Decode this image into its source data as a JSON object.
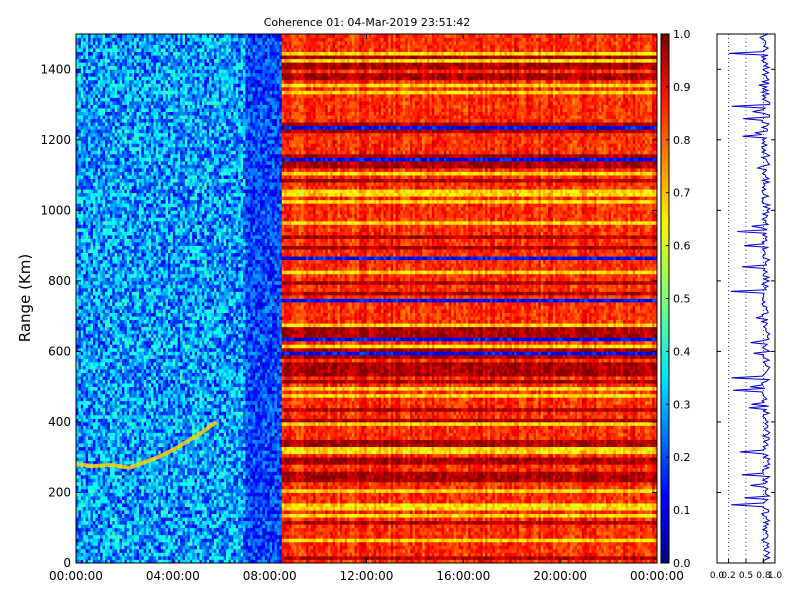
{
  "chart_data": [
    {
      "type": "heatmap",
      "title": "Coherence 01: 04-Mar-2019 23:51:42",
      "xlabel": "",
      "ylabel": "Range (Km)",
      "xlim": [
        "00:00:00",
        "00:00:00 (+24h)"
      ],
      "ylim": [
        0,
        1500
      ],
      "x_ticks": [
        "00:00:00",
        "04:00:00",
        "08:00:00",
        "12:00:00",
        "16:00:00",
        "20:00:00",
        "00:00:00"
      ],
      "y_ticks": [
        "0",
        "200",
        "400",
        "600",
        "800",
        "1000",
        "1200",
        "1400"
      ],
      "colormap": "jet",
      "value_range": [
        0.0,
        1.0
      ],
      "regions": [
        {
          "from": "00:00:00",
          "to": "07:00:00",
          "typical_value": 0.3,
          "description_values": [
            0.2,
            0.45
          ]
        },
        {
          "from": "07:00:00",
          "to": "08:30:00",
          "typical_value": 0.1,
          "description_values": [
            0.05,
            0.25
          ]
        },
        {
          "from": "08:30:00",
          "to": "24:00:00",
          "typical_value": 0.85,
          "description_values": [
            0.6,
            1.0
          ]
        }
      ],
      "feature_curve": {
        "x_hours": [
          0.0,
          0.7,
          1.5,
          2.2,
          2.8,
          3.4,
          4.0,
          4.6,
          5.2,
          5.8
        ],
        "y_km": [
          280,
          275,
          278,
          270,
          285,
          300,
          320,
          345,
          370,
          400
        ]
      },
      "grid": false
    },
    {
      "type": "colorbar",
      "ticks": [
        "0.0",
        "0.1",
        "0.2",
        "0.3",
        "0.4",
        "0.5",
        "0.6",
        "0.7",
        "0.8",
        "0.9",
        "1.0"
      ],
      "range": [
        0.0,
        1.0
      ]
    },
    {
      "type": "line",
      "description": "Coherence profile vs range",
      "x_ticks": [
        "0.0",
        "0.2",
        "0.5",
        "0.8",
        "1.0"
      ],
      "xlim": [
        0.0,
        1.0
      ],
      "ylim": [
        0,
        1500
      ],
      "grid": true,
      "color": "#0000cc"
    }
  ]
}
